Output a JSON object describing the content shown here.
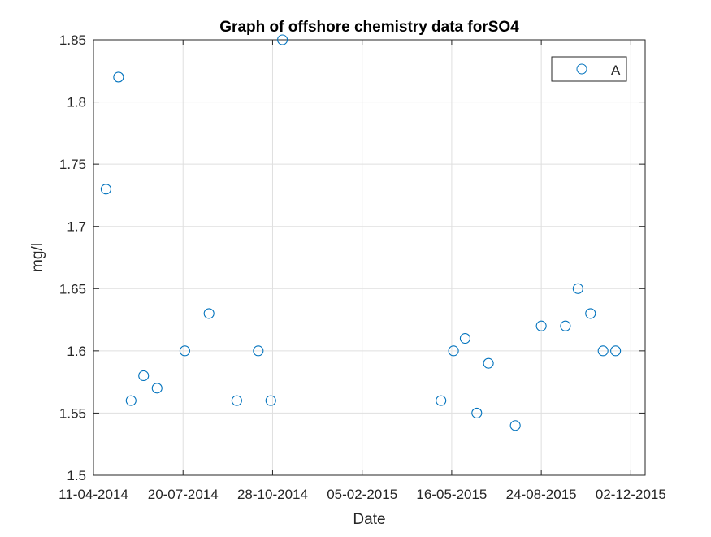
{
  "chart_data": {
    "type": "scatter",
    "title": "Graph of offshore chemistry data forSO4",
    "xlabel": "Date",
    "ylabel": "mg/l",
    "xlim": [
      "2014-04-11",
      "2015-12-18"
    ],
    "ylim": [
      1.5,
      1.85
    ],
    "x_ticks": [
      "2014-04-11",
      "2014-07-20",
      "2014-10-28",
      "2015-02-05",
      "2015-05-16",
      "2015-08-24",
      "2015-12-02"
    ],
    "x_tick_labels": [
      "11-04-2014",
      "20-07-2014",
      "28-10-2014",
      "05-02-2015",
      "16-05-2015",
      "24-08-2015",
      "02-12-2015"
    ],
    "y_ticks": [
      1.5,
      1.55,
      1.6,
      1.65,
      1.7,
      1.75,
      1.8,
      1.85
    ],
    "y_tick_labels": [
      "1.5",
      "1.55",
      "1.6",
      "1.65",
      "1.7",
      "1.75",
      "1.8",
      "1.85"
    ],
    "grid": true,
    "legend": {
      "placement": "top-right"
    },
    "colors": {
      "series": "#0072BD",
      "grid": "#dfdfdf",
      "axis": "#262626"
    },
    "series": [
      {
        "name": "A",
        "marker": "open-circle",
        "points": [
          {
            "x": "2014-04-25",
            "y": 1.73
          },
          {
            "x": "2014-05-09",
            "y": 1.82
          },
          {
            "x": "2014-05-23",
            "y": 1.56
          },
          {
            "x": "2014-06-06",
            "y": 1.58
          },
          {
            "x": "2014-06-21",
            "y": 1.57
          },
          {
            "x": "2014-07-22",
            "y": 1.6
          },
          {
            "x": "2014-08-18",
            "y": 1.63
          },
          {
            "x": "2014-09-18",
            "y": 1.56
          },
          {
            "x": "2014-10-12",
            "y": 1.6
          },
          {
            "x": "2014-10-26",
            "y": 1.56
          },
          {
            "x": "2014-11-08",
            "y": 1.85
          },
          {
            "x": "2015-05-04",
            "y": 1.56
          },
          {
            "x": "2015-05-18",
            "y": 1.6
          },
          {
            "x": "2015-05-31",
            "y": 1.61
          },
          {
            "x": "2015-06-13",
            "y": 1.55
          },
          {
            "x": "2015-06-26",
            "y": 1.59
          },
          {
            "x": "2015-07-26",
            "y": 1.54
          },
          {
            "x": "2015-08-24",
            "y": 1.62
          },
          {
            "x": "2015-09-20",
            "y": 1.62
          },
          {
            "x": "2015-10-04",
            "y": 1.65
          },
          {
            "x": "2015-10-18",
            "y": 1.63
          },
          {
            "x": "2015-11-01",
            "y": 1.6
          },
          {
            "x": "2015-11-15",
            "y": 1.6
          }
        ]
      }
    ]
  }
}
